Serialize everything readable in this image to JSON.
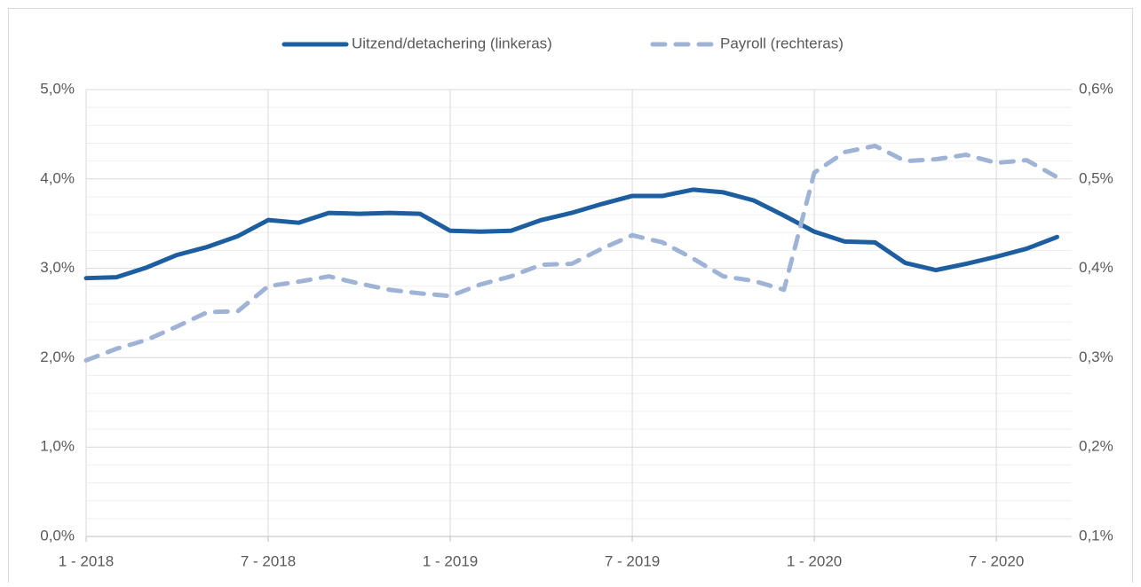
{
  "chart_data": {
    "type": "line",
    "categories": [
      "1 - 2018",
      null,
      null,
      null,
      null,
      null,
      "7 - 2018",
      null,
      null,
      null,
      null,
      null,
      "1 - 2019",
      null,
      null,
      null,
      null,
      null,
      "7 - 2019",
      null,
      null,
      null,
      null,
      null,
      "1 - 2020",
      null,
      null,
      null,
      null,
      null,
      "7 - 2020",
      null,
      null
    ],
    "series": [
      {
        "name": "Uitzend/detachering (linkeras)",
        "color": "#1c5ea0",
        "dash": false,
        "values": [
          2.89,
          2.9,
          3.01,
          3.15,
          3.24,
          3.36,
          3.54,
          3.51,
          3.62,
          3.61,
          3.62,
          3.61,
          3.42,
          3.41,
          3.42,
          3.54,
          3.62,
          3.72,
          3.81,
          3.81,
          3.88,
          3.85,
          3.76,
          3.59,
          3.41,
          3.3,
          3.29,
          3.06,
          2.98,
          3.05,
          3.13,
          3.22,
          3.35
        ]
      },
      {
        "name": "Payroll (rechteras)",
        "color": "#9fb3d6",
        "dash": true,
        "axis": "y2",
        "values": [
          0.297,
          0.31,
          0.32,
          0.335,
          0.351,
          0.352,
          0.38,
          0.385,
          0.391,
          0.383,
          0.376,
          0.372,
          0.369,
          0.382,
          0.391,
          0.404,
          0.405,
          0.422,
          0.437,
          0.429,
          0.411,
          0.391,
          0.386,
          0.376,
          0.507,
          0.53,
          0.537,
          0.52,
          0.522,
          0.527,
          0.518,
          0.521,
          0.502
        ]
      }
    ],
    "ylim": [
      0,
      5
    ],
    "yticks": [
      {
        "value": 0,
        "label": "0,0%"
      },
      {
        "value": 1,
        "label": "1,0%"
      },
      {
        "value": 2,
        "label": "2,0%"
      },
      {
        "value": 3,
        "label": "3,0%"
      },
      {
        "value": 4,
        "label": "4,0%"
      },
      {
        "value": 5,
        "label": "5,0%"
      }
    ],
    "yminorticks": [
      0.2,
      0.4,
      0.6,
      0.8,
      1.2,
      1.4,
      1.6,
      1.8,
      2.2,
      2.4,
      2.6,
      2.8,
      3.2,
      3.4,
      3.6,
      3.8,
      4.2,
      4.4,
      4.6,
      4.8
    ],
    "y2lim": [
      0.1,
      0.6
    ],
    "y2ticks": [
      {
        "value": 0.1,
        "label": "0,1%"
      },
      {
        "value": 0.2,
        "label": "0,2%"
      },
      {
        "value": 0.3,
        "label": "0,3%"
      },
      {
        "value": 0.4,
        "label": "0,4%"
      },
      {
        "value": 0.5,
        "label": "0,5%"
      },
      {
        "value": 0.6,
        "label": "0,6%"
      }
    ],
    "grid": true,
    "legend": "top"
  }
}
